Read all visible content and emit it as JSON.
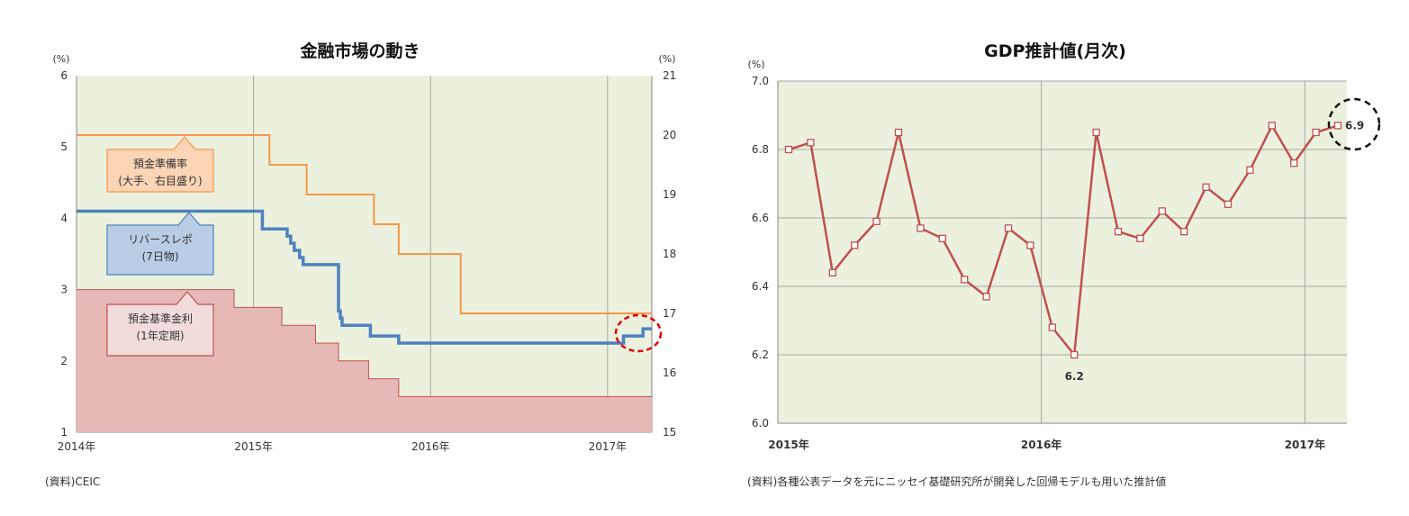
{
  "chart_data": [
    {
      "type": "line",
      "title": "金融市場の動き",
      "left_unit": "(%)",
      "right_unit": "(%)",
      "source": "(資料)CEIC",
      "ylim": [
        1,
        6
      ],
      "y2lim": [
        15,
        21
      ],
      "xlim": [
        2014.0,
        2017.25
      ],
      "left_ticks": [
        "1",
        "2",
        "3",
        "4",
        "5",
        "6"
      ],
      "right_ticks": [
        "15",
        "16",
        "17",
        "18",
        "19",
        "20",
        "21"
      ],
      "x_ticks": [
        {
          "x": 2014,
          "label": "2014年"
        },
        {
          "x": 2015,
          "label": "2015年"
        },
        {
          "x": 2016,
          "label": "2016年"
        },
        {
          "x": 2017,
          "label": "2017年"
        }
      ],
      "series": [
        {
          "name": "預金準備率",
          "axis": "right",
          "color": "#f79646",
          "step": true,
          "points": [
            [
              2014.0,
              20.0
            ],
            [
              2015.09,
              19.5
            ],
            [
              2015.3,
              19.0
            ],
            [
              2015.68,
              18.5
            ],
            [
              2015.82,
              18.0
            ],
            [
              2016.17,
              17.0
            ],
            [
              2017.25,
              17.0
            ]
          ]
        },
        {
          "name": "リバースレポ",
          "axis": "left",
          "color": "#4f81bd",
          "step": true,
          "points": [
            [
              2014.0,
              4.1
            ],
            [
              2015.05,
              3.85
            ],
            [
              2015.19,
              3.75
            ],
            [
              2015.21,
              3.65
            ],
            [
              2015.23,
              3.55
            ],
            [
              2015.26,
              3.45
            ],
            [
              2015.28,
              3.35
            ],
            [
              2015.48,
              2.7
            ],
            [
              2015.49,
              2.6
            ],
            [
              2015.5,
              2.5
            ],
            [
              2015.66,
              2.35
            ],
            [
              2015.82,
              2.25
            ],
            [
              2017.09,
              2.35
            ],
            [
              2017.2,
              2.45
            ],
            [
              2017.25,
              2.45
            ]
          ]
        },
        {
          "name": "預金基準金利",
          "axis": "left",
          "color": "#c0504d",
          "fill": "#e6b8b7",
          "step": true,
          "points": [
            [
              2014.0,
              3.0
            ],
            [
              2014.89,
              2.75
            ],
            [
              2015.16,
              2.5
            ],
            [
              2015.35,
              2.25
            ],
            [
              2015.48,
              2.0
            ],
            [
              2015.65,
              1.75
            ],
            [
              2015.82,
              1.5
            ],
            [
              2017.25,
              1.5
            ]
          ]
        }
      ],
      "callouts": [
        {
          "series": "預金準備率",
          "lines": [
            "預金準備率",
            "(大手、右目盛り)"
          ],
          "fill": "#fbd5b5",
          "stroke": "#f79646"
        },
        {
          "series": "リバースレポ",
          "lines": [
            "リバースレポ",
            "(7日物)"
          ],
          "fill": "#b9cde5",
          "stroke": "#4f81bd"
        },
        {
          "series": "預金基準金利",
          "lines": [
            "預金基準金利",
            "(1年定期)"
          ],
          "fill": "#f2dcdb",
          "stroke": "#c0504d"
        }
      ],
      "plot_background": "#ebf1de",
      "highlight": {
        "color": "#e00000",
        "style": "dashed-ellipse"
      }
    },
    {
      "type": "line",
      "title": "GDP推計値(月次)",
      "y_unit": "(%)",
      "source": "(資料)各種公表データを元にニッセイ基礎研究所が開発した回帰モデルも用いた推計値",
      "ylim": [
        6.0,
        7.0
      ],
      "y_ticks": [
        "6.0",
        "6.2",
        "6.4",
        "6.6",
        "6.8",
        "7.0"
      ],
      "x_ticks": [
        {
          "index": 0,
          "label": "2015年"
        },
        {
          "index": 12,
          "label": "2016年"
        },
        {
          "index": 24,
          "label": "2017年"
        }
      ],
      "series": [
        {
          "name": "",
          "color": "#c0504d",
          "marker": "square",
          "values": [
            6.8,
            6.82,
            6.44,
            6.52,
            6.59,
            6.85,
            6.57,
            6.54,
            6.42,
            6.37,
            6.57,
            6.52,
            6.28,
            6.2,
            6.85,
            6.56,
            6.54,
            6.62,
            6.56,
            6.69,
            6.64,
            6.74,
            6.87,
            6.76,
            6.85,
            6.87
          ]
        }
      ],
      "data_labels": [
        {
          "index": 13,
          "text": "6.2"
        },
        {
          "index": 25,
          "text": "6.9"
        }
      ],
      "plot_background": "#ebf1de",
      "highlight": {
        "color": "#000000",
        "style": "dashed-circle"
      }
    }
  ]
}
